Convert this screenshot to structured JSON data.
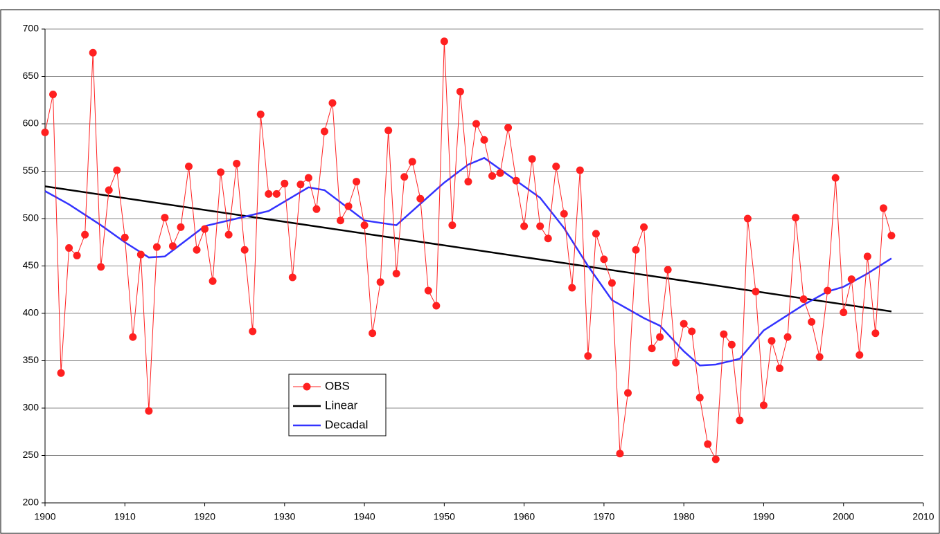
{
  "chart_data": {
    "type": "line",
    "xlim": [
      1900,
      2010
    ],
    "xticks": [
      1900,
      1910,
      1920,
      1930,
      1940,
      1950,
      1960,
      1970,
      1980,
      1990,
      2000,
      2010
    ],
    "ylim": [
      200,
      700
    ],
    "yticks": [
      200,
      250,
      300,
      350,
      400,
      450,
      500,
      550,
      600,
      650,
      700
    ],
    "grid": true,
    "legend": "lower-left",
    "series": [
      {
        "name": "OBS",
        "color": "#ff2020",
        "markers": true,
        "x": [
          1900,
          1901,
          1902,
          1903,
          1904,
          1905,
          1906,
          1907,
          1908,
          1909,
          1910,
          1911,
          1912,
          1913,
          1914,
          1915,
          1916,
          1917,
          1918,
          1919,
          1920,
          1921,
          1922,
          1923,
          1924,
          1925,
          1926,
          1927,
          1928,
          1929,
          1930,
          1931,
          1932,
          1933,
          1934,
          1935,
          1936,
          1937,
          1938,
          1939,
          1940,
          1941,
          1942,
          1943,
          1944,
          1945,
          1946,
          1947,
          1948,
          1949,
          1950,
          1951,
          1952,
          1953,
          1954,
          1955,
          1956,
          1957,
          1958,
          1959,
          1960,
          1961,
          1962,
          1963,
          1964,
          1965,
          1966,
          1967,
          1968,
          1969,
          1970,
          1971,
          1972,
          1973,
          1974,
          1975,
          1976,
          1977,
          1978,
          1979,
          1980,
          1981,
          1982,
          1983,
          1984,
          1985,
          1986,
          1987,
          1988,
          1989,
          1990,
          1991,
          1992,
          1993,
          1994,
          1995,
          1996,
          1997,
          1998,
          1999,
          2000,
          2001,
          2002,
          2003,
          2004,
          2005,
          2006
        ],
        "values": [
          591,
          631,
          337,
          469,
          461,
          483,
          675,
          449,
          530,
          551,
          480,
          375,
          462,
          297,
          470,
          501,
          471,
          491,
          555,
          467,
          489,
          434,
          549,
          483,
          558,
          467,
          381,
          610,
          526,
          526,
          537,
          438,
          536,
          543,
          510,
          592,
          622,
          498,
          513,
          539,
          493,
          379,
          433,
          593,
          442,
          544,
          560,
          521,
          424,
          408,
          687,
          493,
          634,
          539,
          600,
          583,
          545,
          548,
          596,
          540,
          492,
          563,
          492,
          479,
          555,
          505,
          427,
          551,
          355,
          484,
          457,
          432,
          252,
          316,
          467,
          491,
          363,
          375,
          446,
          348,
          389,
          381,
          311,
          262,
          246,
          378,
          367,
          287,
          500,
          423,
          303,
          371,
          342,
          375,
          501,
          415,
          391,
          354,
          424,
          543,
          401,
          436,
          356,
          460,
          379,
          511,
          482
        ]
      },
      {
        "name": "Linear",
        "color": "#000000",
        "markers": false,
        "x": [
          1900,
          2006
        ],
        "values": [
          534,
          402
        ]
      },
      {
        "name": "Decadal",
        "color": "#3333ff",
        "markers": false,
        "x": [
          1900,
          1903,
          1907,
          1910,
          1913,
          1915,
          1920,
          1925,
          1928,
          1933,
          1935,
          1940,
          1944,
          1950,
          1953,
          1955,
          1958,
          1962,
          1965,
          1968,
          1971,
          1975,
          1977,
          1980,
          1982,
          1984,
          1987,
          1990,
          1995,
          1998,
          2000,
          2003,
          2006
        ],
        "values": [
          529,
          515,
          493,
          475,
          459,
          460,
          492,
          502,
          508,
          533,
          530,
          498,
          493,
          538,
          557,
          564,
          546,
          522,
          490,
          450,
          414,
          395,
          387,
          360,
          345,
          346,
          352,
          382,
          409,
          423,
          428,
          442,
          458
        ]
      }
    ]
  }
}
